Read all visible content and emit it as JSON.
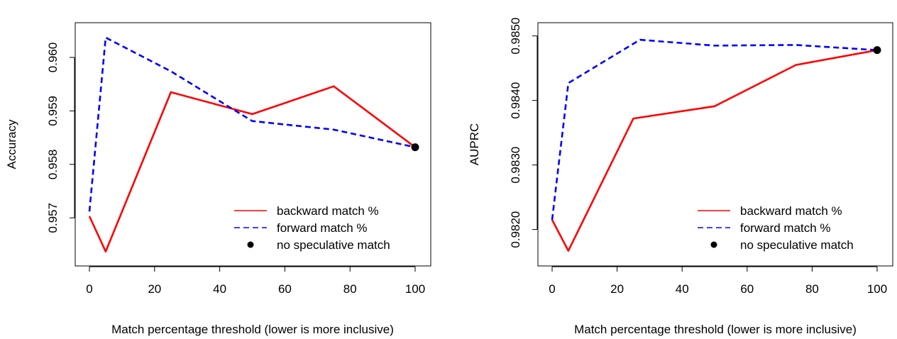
{
  "chart_data": [
    {
      "type": "line",
      "title": "",
      "xlabel": "Match percentage threshold (lower is more inclusive)",
      "ylabel": "Accuracy",
      "xlim": [
        0,
        100
      ],
      "ylim": [
        0.9563,
        0.96045
      ],
      "x_ticks": [
        0,
        20,
        40,
        60,
        80,
        100
      ],
      "x_tick_labels": [
        "0",
        "20",
        "40",
        "60",
        "80",
        "100"
      ],
      "y_ticks": [
        0.957,
        0.958,
        0.959,
        0.96
      ],
      "y_tick_labels": [
        "0.957",
        "0.958",
        "0.959",
        "0.960"
      ],
      "grid": false,
      "legend_position": "bottom-right",
      "series": [
        {
          "name": "backward match %",
          "color": "#ff0000",
          "style": "solid",
          "x": [
            0,
            5,
            25,
            50,
            75,
            100
          ],
          "y": [
            0.95703,
            0.95637,
            0.95935,
            0.95894,
            0.95946,
            0.95832
          ]
        },
        {
          "name": "forward match %",
          "color": "#0000ff",
          "style": "dashed",
          "x": [
            0,
            5,
            25,
            50,
            75,
            100
          ],
          "y": [
            0.95712,
            0.96037,
            0.95974,
            0.95881,
            0.95865,
            0.95832
          ]
        }
      ],
      "points": [
        {
          "name": "no speculative match",
          "color": "#000000",
          "x": 100,
          "y": 0.95832
        }
      ]
    },
    {
      "type": "line",
      "title": "",
      "xlabel": "Match percentage threshold (lower is more inclusive)",
      "ylabel": "AUPRC",
      "xlim": [
        0,
        100
      ],
      "ylim": [
        0.9816,
        0.98504
      ],
      "x_ticks": [
        0,
        20,
        40,
        60,
        80,
        100
      ],
      "x_tick_labels": [
        "0",
        "20",
        "40",
        "60",
        "80",
        "100"
      ],
      "y_ticks": [
        0.982,
        0.983,
        0.984,
        0.985
      ],
      "y_tick_labels": [
        "0.9820",
        "0.9830",
        "0.9840",
        "0.9850"
      ],
      "grid": false,
      "legend_position": "bottom-right",
      "series": [
        {
          "name": "backward match %",
          "color": "#ff0000",
          "style": "solid",
          "x": [
            0,
            5,
            25,
            50,
            75,
            100
          ],
          "y": [
            0.98215,
            0.98167,
            0.98372,
            0.98391,
            0.98455,
            0.98478
          ]
        },
        {
          "name": "forward match %",
          "color": "#0000ff",
          "style": "dashed",
          "x": [
            0,
            5,
            27,
            50,
            75,
            100
          ],
          "y": [
            0.98215,
            0.98427,
            0.98494,
            0.98485,
            0.98486,
            0.98478
          ]
        }
      ],
      "points": [
        {
          "name": "no speculative match",
          "color": "#000000",
          "x": 100,
          "y": 0.98478
        }
      ]
    }
  ]
}
